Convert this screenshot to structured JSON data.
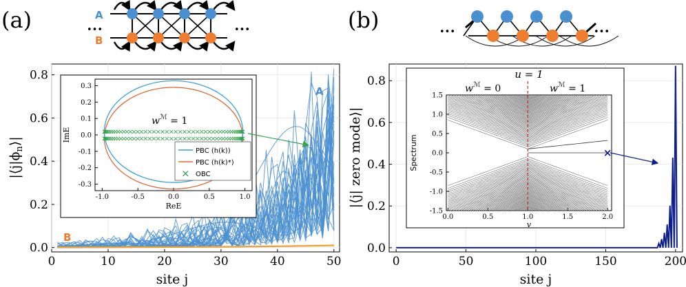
{
  "panel_a": {
    "label": "(a)",
    "schematic": {
      "row_a": "A",
      "row_b": "B",
      "ellipsis_left": "•••",
      "ellipsis_right": "•••"
    },
    "ylabel": "|⟨j|ϕ",
    "ylabel_sub": "n",
    "ylabel_end": "⟩|",
    "xlabel": "site j",
    "annot_a": "A",
    "annot_b": "B",
    "inset": {
      "xlabel": "ReE",
      "ylabel": "ImE",
      "winding": "w",
      "winding_sup": "ℳ",
      "winding_val": " = 1",
      "legend": [
        "PBC (h(k))",
        "PBC (h(k)*)",
        "OBC"
      ]
    }
  },
  "panel_b": {
    "label": "(b)",
    "schematic": {
      "ellipsis_left": "•••",
      "ellipsis_right": "•••"
    },
    "ylabel": "|⟨j| zero mode⟩|",
    "xlabel": "site j",
    "inset": {
      "title": "u = 1",
      "region_left": "w",
      "region_left_sup": "ℳ",
      "region_left_val": " = 0",
      "region_right": "w",
      "region_right_sup": "ℳ",
      "region_right_val": " = 1",
      "xlabel": "v",
      "ylabel": "Spectrum"
    }
  },
  "colors": {
    "blue": "#4a8fd0",
    "orange": "#ef7d2f",
    "navy": "#0d1f8c",
    "green": "#33a34d",
    "gold": "#f0b41e",
    "red_dash": "#cc1a1a",
    "gray": "#8a8a8a"
  },
  "chart_data": [
    {
      "type": "line",
      "title": "(a)",
      "xlabel": "site j",
      "ylabel": "|⟨j|ϕ_n⟩|",
      "xlim": [
        0,
        51
      ],
      "ylim": [
        -0.02,
        0.85
      ],
      "xticks": [
        0,
        10,
        20,
        30,
        40,
        50
      ],
      "yticks": [
        0.0,
        0.2,
        0.4,
        0.6,
        0.8
      ],
      "series": [
        {
          "name": "A",
          "description": "many eigenstates, skin localized at right end",
          "peak_site": 50,
          "peak_value": 0.84
        },
        {
          "name": "B",
          "description": "near zero",
          "peak_value": 0.01
        }
      ]
    },
    {
      "type": "scatter",
      "title": "inset (a)",
      "xlabel": "ReE",
      "ylabel": "ImE",
      "xlim": [
        -1.1,
        1.1
      ],
      "ylim": [
        -0.34,
        0.34
      ],
      "xticks": [
        -1.0,
        -0.5,
        0.0,
        0.5,
        1.0
      ],
      "yticks": [
        -0.3,
        -0.2,
        -0.1,
        0.0,
        0.1,
        0.2,
        0.3
      ],
      "series": [
        {
          "name": "PBC (h(k))",
          "shape": "ellipse",
          "center": [
            0.0,
            0.02
          ],
          "rx": 0.97,
          "ry": 0.31
        },
        {
          "name": "PBC (h(k)*)",
          "shape": "ellipse",
          "center": [
            0.0,
            -0.02
          ],
          "rx": 0.97,
          "ry": 0.31
        },
        {
          "name": "OBC",
          "rows_im": [
            0.02,
            -0.02
          ],
          "re_range": [
            -0.97,
            0.97
          ],
          "count_per_row": 50
        }
      ]
    },
    {
      "type": "line",
      "title": "(b)",
      "xlabel": "site j",
      "ylabel": "|⟨j| zero mode⟩|",
      "xlim": [
        -5,
        205
      ],
      "ylim": [
        -0.02,
        0.88
      ],
      "xticks": [
        0,
        50,
        100,
        150,
        200
      ],
      "yticks": [
        0.0,
        0.2,
        0.4,
        0.6,
        0.8
      ],
      "peaks": [
        {
          "x": 188,
          "y": 0.02
        },
        {
          "x": 190,
          "y": 0.04
        },
        {
          "x": 192,
          "y": 0.07
        },
        {
          "x": 194,
          "y": 0.11
        },
        {
          "x": 196,
          "y": 0.2
        },
        {
          "x": 198,
          "y": 0.43
        },
        {
          "x": 200,
          "y": 0.87
        }
      ]
    },
    {
      "type": "line",
      "title": "inset (b)",
      "xlabel": "v",
      "ylabel": "Spectrum",
      "xlim": [
        -0.02,
        2.05
      ],
      "ylim": [
        -1.5,
        1.5
      ],
      "xticks": [
        0.0,
        0.5,
        1.0,
        1.5,
        2.0
      ],
      "yticks": [
        -1.5,
        -1.0,
        -0.5,
        0.0,
        0.5,
        1.0,
        1.5
      ],
      "vline": 1.0,
      "marker": {
        "x": 2.0,
        "y": 0.0
      }
    }
  ]
}
